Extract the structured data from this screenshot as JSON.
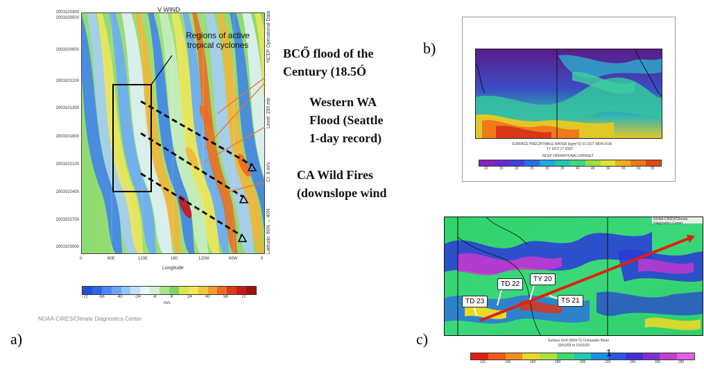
{
  "panel_a": {
    "letter": "a)",
    "title": "V WIND",
    "y_labels": [
      "2003100300",
      "2003100500",
      "2003100900",
      "2003101200",
      "2003101300",
      "2003101800",
      "2003102100",
      "2003102400",
      "2003102700",
      "2003103000"
    ],
    "x_labels": [
      "0",
      "60E",
      "120E",
      "180",
      "120W",
      "60W",
      "0"
    ],
    "xlabel": "Longitude",
    "right_axis_label": "NCEP Operational Data",
    "right_label_2": "Level: 250 mb",
    "right_label_3": "CI: 8 m/s",
    "right_label_4": "Latitude: 60N → 40N",
    "colorbar_ticks": [
      "-72",
      "-56",
      "-40",
      "-24",
      "-8",
      "8",
      "24",
      "40",
      "56",
      "72"
    ],
    "colorbar_unit": "m/s",
    "credit": "NOAA-CIRES/Climate Diagnostics Center",
    "callout": "Regions of active tropical cyclones"
  },
  "annotations": [
    "BCŐ flood of the",
    "Century (18.5Ó",
    "Western WA",
    "Flood (Seattle",
    "1-day record)",
    "CA Wild Fires",
    "(downslope wind"
  ],
  "panel_b": {
    "letter": "b)",
    "caption_1": "SURFACE PRECIPITABLE WATER (kg/m^2)  01-OCT  MON FOR",
    "caption_2": "TY OCT 17 2003",
    "caption_3": "NCEP OPERATIONAL DATASET",
    "colorbar_ticks": [
      "10",
      "15",
      "20",
      "25",
      "30",
      "35",
      "40",
      "45",
      "50",
      "55",
      "60",
      "65"
    ]
  },
  "panel_c": {
    "letter": "c)",
    "header": "NOAA-CIRES/Climate Diagnostics Center",
    "storm_labels": [
      "TD 23",
      "TD 22",
      "TY 20",
      "TS 21"
    ],
    "caption_1": "Surface OLR (W/m^2) Composite Mean",
    "caption_2": "10/01/03 to 10/31/03",
    "colorbar_ticks": [
      "120",
      "140",
      "160",
      "180",
      "200",
      "220",
      "240",
      "260",
      "280"
    ]
  },
  "page_number": "1",
  "colors": {
    "wind_palette": [
      "#1f4fd6",
      "#3d7ff0",
      "#6aa8ff",
      "#a7cdfb",
      "#e4f2ff",
      "#c9eec5",
      "#84d86e",
      "#f2e85a",
      "#f6b43a",
      "#ec6a22",
      "#c81818"
    ],
    "arrow_red": "#e02010"
  }
}
